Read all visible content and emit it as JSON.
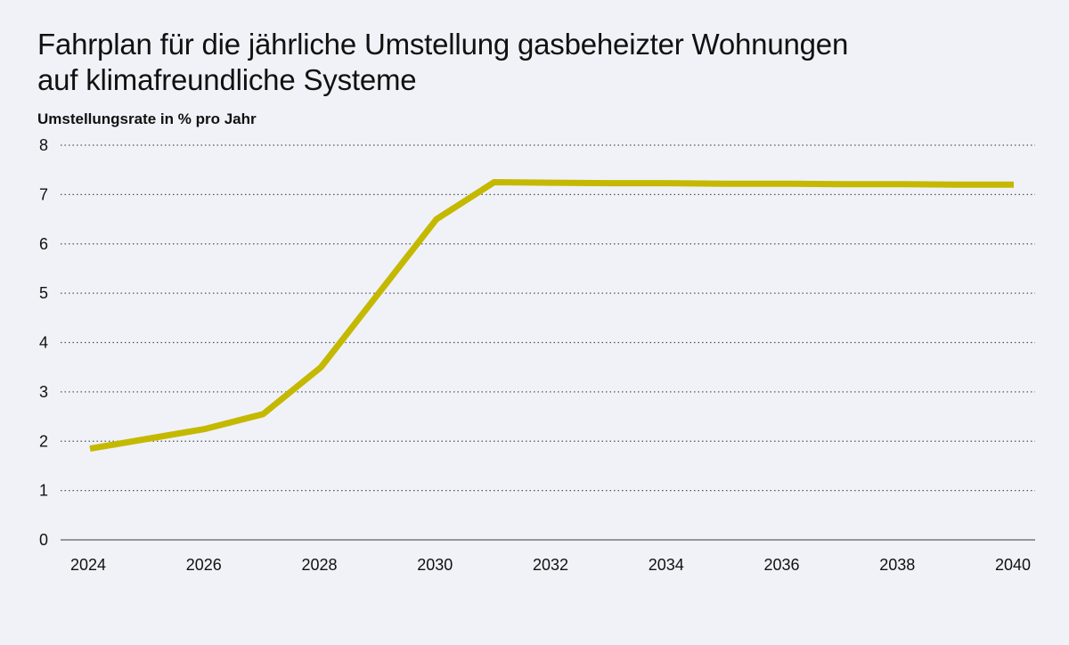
{
  "chart_data": {
    "type": "line",
    "title_lines": [
      "Fahrplan für die jährliche Umstellung gasbeheizter Wohnungen",
      "auf klimafreundliche Systeme"
    ],
    "ylabel": "Umstellungsrate in % pro Jahr",
    "xlabel": "",
    "ylim": [
      0,
      8
    ],
    "yticks": [
      0,
      1,
      2,
      3,
      4,
      5,
      6,
      7,
      8
    ],
    "xlim": [
      2024,
      2040
    ],
    "xticks": [
      2024,
      2026,
      2028,
      2030,
      2032,
      2034,
      2036,
      2038,
      2040
    ],
    "grid": "horizontal-dotted",
    "series": [
      {
        "name": "Umstellungsrate",
        "color": "#c4b900",
        "x": [
          2024,
          2025,
          2026,
          2027,
          2028,
          2029,
          2030,
          2031,
          2032,
          2033,
          2034,
          2035,
          2036,
          2037,
          2038,
          2039,
          2040
        ],
        "values": [
          1.85,
          2.05,
          2.25,
          2.55,
          3.5,
          5.0,
          6.5,
          7.25,
          7.24,
          7.23,
          7.23,
          7.22,
          7.22,
          7.21,
          7.21,
          7.2,
          7.2
        ]
      }
    ]
  },
  "colors": {
    "background": "#f0f2f7",
    "grid": "#555555",
    "axis": "#777777",
    "text": "#111111"
  }
}
